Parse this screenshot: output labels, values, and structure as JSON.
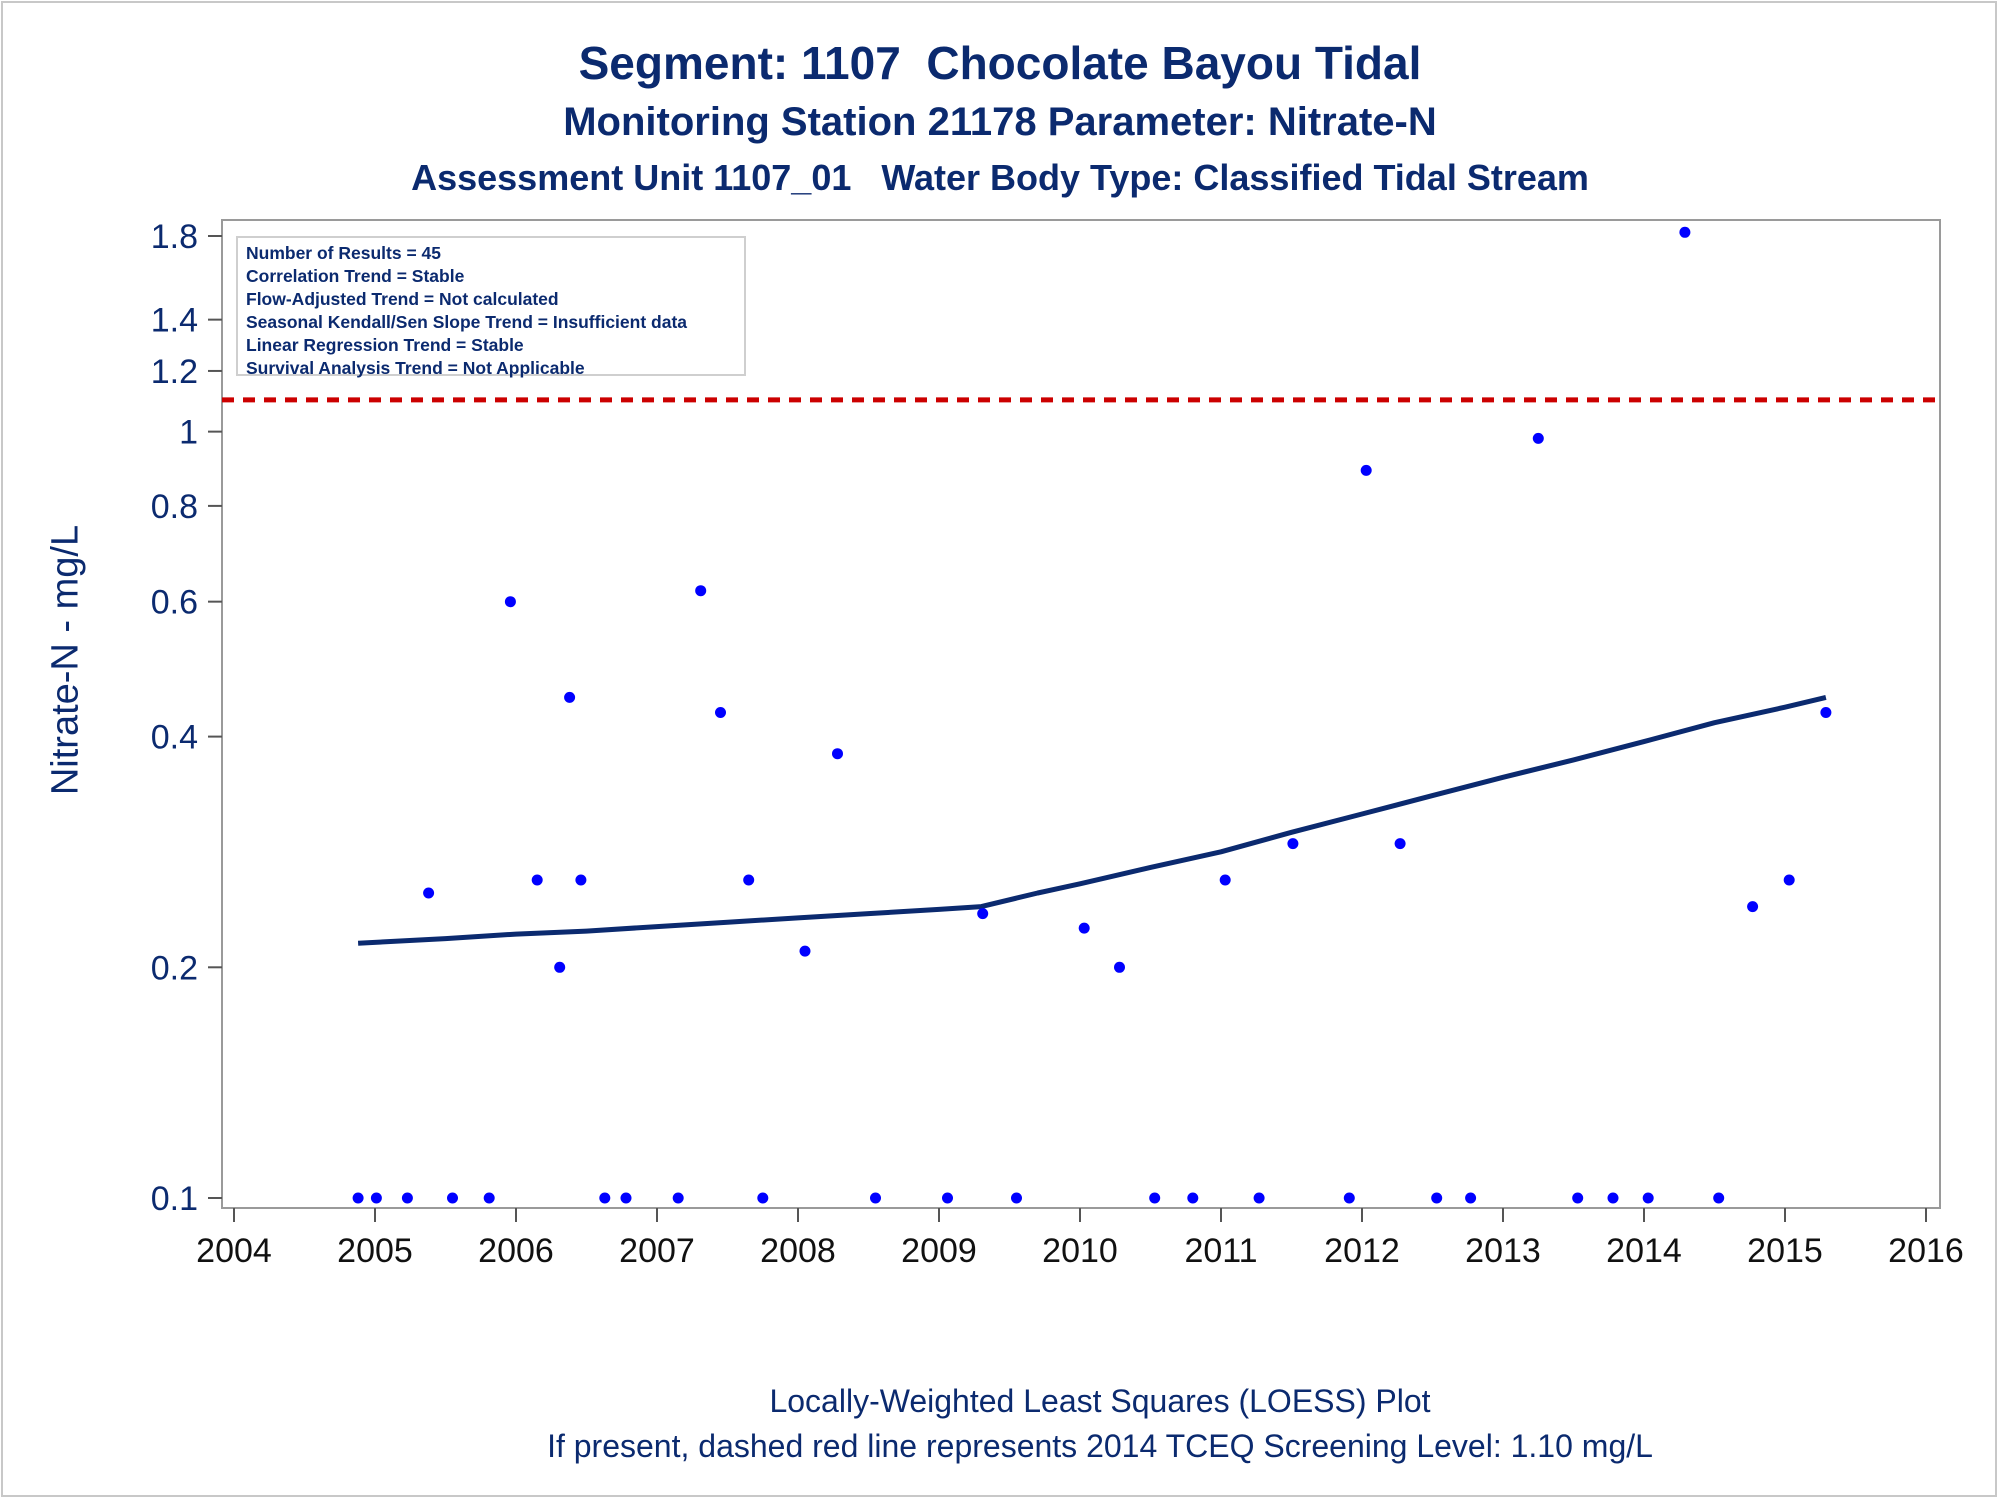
{
  "titles": {
    "line1": "Segment: 1107  Chocolate Bayou Tidal",
    "line2": "Monitoring Station 21178 Parameter: Nitrate-N",
    "line3": "Assessment Unit 1107_01   Water Body Type: Classified Tidal Stream"
  },
  "footnotes": {
    "line1": "Locally-Weighted Least Squares (LOESS) Plot",
    "line2": "If present, dashed red line represents 2014 TCEQ Screening Level: 1.10 mg/L"
  },
  "info_box": [
    "Number of Results = 45",
    "Correlation Trend = Stable",
    "Flow-Adjusted Trend = Not calculated",
    "Seasonal Kendall/Sen Slope Trend = Insufficient data",
    "Linear Regression Trend = Stable",
    "Survival Analysis Trend = Not Applicable"
  ],
  "colors": {
    "text": "#0b2a6f",
    "points": "#0000ff",
    "loess": "#0b2a6f",
    "screening": "#cc0000"
  },
  "chart_data": {
    "type": "scatter",
    "ylabel": "Nitrate-N - mg/L",
    "yscale": "log",
    "xlim": [
      2004,
      2016
    ],
    "ylim": [
      0.1,
      1.9
    ],
    "xticks": [
      2004,
      2005,
      2006,
      2007,
      2008,
      2009,
      2010,
      2011,
      2012,
      2013,
      2014,
      2015,
      2016
    ],
    "xtick_labels": [
      "2004",
      "2005",
      "2006",
      "2007",
      "2008",
      "2009",
      "2010",
      "2011",
      "2012",
      "2013",
      "2014",
      "2015",
      "2016"
    ],
    "yticks": [
      0.1,
      0.2,
      0.4,
      0.6,
      0.8,
      1,
      1.2,
      1.4,
      1.8
    ],
    "ytick_labels": [
      "0.1",
      "0.2",
      "0.4",
      "0.6",
      "0.8",
      "1",
      "1.2",
      "1.4",
      "1.8"
    ],
    "screening_level": 1.1,
    "points": [
      {
        "x": 2004.88,
        "y": 0.1
      },
      {
        "x": 2005.01,
        "y": 0.1
      },
      {
        "x": 2005.23,
        "y": 0.1
      },
      {
        "x": 2005.38,
        "y": 0.25
      },
      {
        "x": 2005.55,
        "y": 0.1
      },
      {
        "x": 2005.81,
        "y": 0.1
      },
      {
        "x": 2005.96,
        "y": 0.6
      },
      {
        "x": 2006.15,
        "y": 0.26
      },
      {
        "x": 2006.31,
        "y": 0.2
      },
      {
        "x": 2006.38,
        "y": 0.45
      },
      {
        "x": 2006.46,
        "y": 0.26
      },
      {
        "x": 2006.63,
        "y": 0.1
      },
      {
        "x": 2006.78,
        "y": 0.1
      },
      {
        "x": 2007.15,
        "y": 0.1
      },
      {
        "x": 2007.31,
        "y": 0.62
      },
      {
        "x": 2007.45,
        "y": 0.43
      },
      {
        "x": 2007.65,
        "y": 0.26
      },
      {
        "x": 2007.75,
        "y": 0.1
      },
      {
        "x": 2008.05,
        "y": 0.21
      },
      {
        "x": 2008.28,
        "y": 0.38
      },
      {
        "x": 2008.55,
        "y": 0.1
      },
      {
        "x": 2009.06,
        "y": 0.1
      },
      {
        "x": 2009.31,
        "y": 0.235
      },
      {
        "x": 2009.55,
        "y": 0.1
      },
      {
        "x": 2010.03,
        "y": 0.225
      },
      {
        "x": 2010.28,
        "y": 0.2
      },
      {
        "x": 2010.53,
        "y": 0.1
      },
      {
        "x": 2010.8,
        "y": 0.1
      },
      {
        "x": 2011.03,
        "y": 0.26
      },
      {
        "x": 2011.27,
        "y": 0.1
      },
      {
        "x": 2011.51,
        "y": 0.29
      },
      {
        "x": 2011.91,
        "y": 0.1
      },
      {
        "x": 2012.03,
        "y": 0.89
      },
      {
        "x": 2012.27,
        "y": 0.29
      },
      {
        "x": 2012.53,
        "y": 0.1
      },
      {
        "x": 2012.77,
        "y": 0.1
      },
      {
        "x": 2013.25,
        "y": 0.98
      },
      {
        "x": 2013.53,
        "y": 0.1
      },
      {
        "x": 2013.78,
        "y": 0.1
      },
      {
        "x": 2014.03,
        "y": 0.1
      },
      {
        "x": 2014.29,
        "y": 1.82
      },
      {
        "x": 2014.53,
        "y": 0.1
      },
      {
        "x": 2014.77,
        "y": 0.24
      },
      {
        "x": 2015.03,
        "y": 0.26
      },
      {
        "x": 2015.29,
        "y": 0.43
      }
    ],
    "loess": [
      {
        "x": 2004.88,
        "y": 0.215
      },
      {
        "x": 2005.5,
        "y": 0.218
      },
      {
        "x": 2006.0,
        "y": 0.221
      },
      {
        "x": 2006.5,
        "y": 0.223
      },
      {
        "x": 2007.0,
        "y": 0.226
      },
      {
        "x": 2007.5,
        "y": 0.229
      },
      {
        "x": 2008.0,
        "y": 0.232
      },
      {
        "x": 2008.5,
        "y": 0.235
      },
      {
        "x": 2009.0,
        "y": 0.238
      },
      {
        "x": 2009.3,
        "y": 0.24
      },
      {
        "x": 2009.7,
        "y": 0.25
      },
      {
        "x": 2010.0,
        "y": 0.257
      },
      {
        "x": 2010.5,
        "y": 0.27
      },
      {
        "x": 2011.0,
        "y": 0.283
      },
      {
        "x": 2011.5,
        "y": 0.3
      },
      {
        "x": 2012.0,
        "y": 0.317
      },
      {
        "x": 2012.5,
        "y": 0.335
      },
      {
        "x": 2013.0,
        "y": 0.354
      },
      {
        "x": 2013.5,
        "y": 0.373
      },
      {
        "x": 2014.0,
        "y": 0.394
      },
      {
        "x": 2014.5,
        "y": 0.417
      },
      {
        "x": 2015.0,
        "y": 0.437
      },
      {
        "x": 2015.29,
        "y": 0.45
      }
    ]
  }
}
